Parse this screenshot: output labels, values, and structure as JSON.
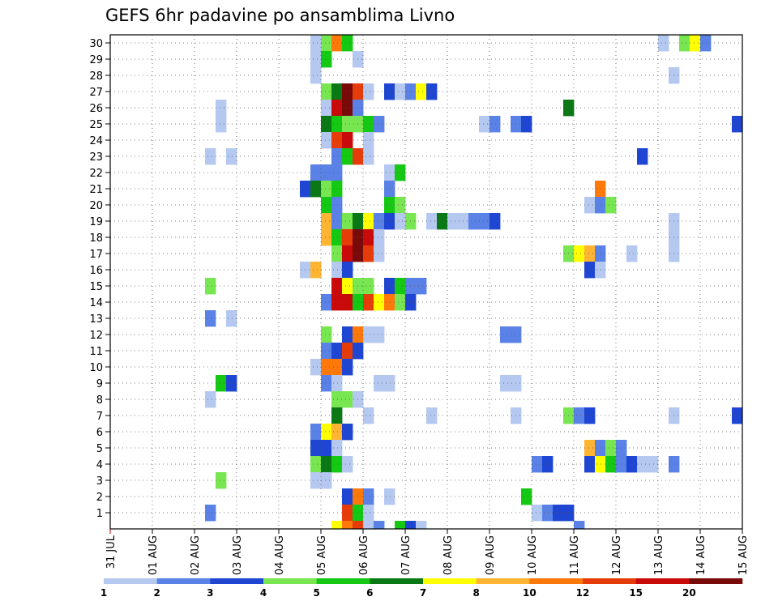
{
  "chart_data": {
    "type": "heatmap",
    "title": "GEFS 6hr padavine po ansamblima Livno",
    "y_ticks": [
      "30",
      "29",
      "28",
      "27",
      "26",
      "25",
      "24",
      "23",
      "22",
      "21",
      "20",
      "19",
      "18",
      "17",
      "16",
      "15",
      "14",
      "13",
      "12",
      "11",
      "10",
      "9",
      "8",
      "7",
      "6",
      "5",
      "4",
      "3",
      "2",
      "1"
    ],
    "x_ticks": [
      "31 JUL",
      "01 AUG",
      "02 AUG",
      "03 AUG",
      "04 AUG",
      "05 AUG",
      "06 AUG",
      "07 AUG",
      "08 AUG",
      "09 AUG",
      "10 AUG",
      "11 AUG",
      "12 AUG",
      "13 AUG",
      "14 AUG",
      "15 AUG"
    ],
    "color_scale": [
      {
        "label": "1",
        "color": "#b4c8f0"
      },
      {
        "label": "2",
        "color": "#5a82e6"
      },
      {
        "label": "3",
        "color": "#1e46d2"
      },
      {
        "label": "4",
        "color": "#78e650"
      },
      {
        "label": "5",
        "color": "#14c814"
      },
      {
        "label": "6",
        "color": "#0a7814"
      },
      {
        "label": "7",
        "color": "#ffff00"
      },
      {
        "label": "8",
        "color": "#ffb432"
      },
      {
        "label": "10",
        "color": "#ff780a"
      },
      {
        "label": "12",
        "color": "#e63c0a"
      },
      {
        "label": "15",
        "color": "#c80a0a"
      },
      {
        "label": "20",
        "color": "#780a0a"
      }
    ],
    "members": 30,
    "steps": 60,
    "cells": [
      [
        30,
        19,
        1
      ],
      [
        30,
        20,
        4
      ],
      [
        30,
        21,
        10
      ],
      [
        30,
        22,
        5
      ],
      [
        30,
        52,
        1
      ],
      [
        30,
        54,
        4
      ],
      [
        30,
        55,
        7
      ],
      [
        30,
        56,
        2
      ],
      [
        29,
        19,
        1
      ],
      [
        29,
        20,
        5
      ],
      [
        29,
        23,
        1
      ],
      [
        28,
        19,
        1
      ],
      [
        28,
        53,
        1
      ],
      [
        27,
        20,
        4
      ],
      [
        27,
        21,
        6
      ],
      [
        27,
        22,
        20
      ],
      [
        27,
        23,
        12
      ],
      [
        27,
        24,
        1
      ],
      [
        27,
        26,
        3
      ],
      [
        27,
        27,
        1
      ],
      [
        27,
        28,
        2
      ],
      [
        27,
        29,
        7
      ],
      [
        27,
        30,
        3
      ],
      [
        26,
        20,
        1
      ],
      [
        26,
        21,
        15
      ],
      [
        26,
        22,
        20
      ],
      [
        26,
        23,
        2
      ],
      [
        26,
        10,
        1
      ],
      [
        26,
        43,
        6
      ],
      [
        25,
        10,
        1
      ],
      [
        25,
        20,
        6
      ],
      [
        25,
        21,
        5
      ],
      [
        25,
        22,
        4
      ],
      [
        25,
        23,
        4
      ],
      [
        25,
        24,
        5
      ],
      [
        25,
        25,
        2
      ],
      [
        25,
        35,
        1
      ],
      [
        25,
        36,
        2
      ],
      [
        25,
        38,
        2
      ],
      [
        25,
        39,
        3
      ],
      [
        25,
        59,
        3
      ],
      [
        24,
        20,
        1
      ],
      [
        24,
        21,
        12
      ],
      [
        24,
        22,
        15
      ],
      [
        24,
        24,
        1
      ],
      [
        23,
        9,
        1
      ],
      [
        23,
        11,
        1
      ],
      [
        23,
        21,
        2
      ],
      [
        23,
        22,
        5
      ],
      [
        23,
        23,
        12
      ],
      [
        23,
        24,
        1
      ],
      [
        23,
        50,
        3
      ],
      [
        22,
        19,
        2
      ],
      [
        22,
        20,
        2
      ],
      [
        22,
        21,
        2
      ],
      [
        22,
        26,
        1
      ],
      [
        22,
        27,
        5
      ],
      [
        21,
        18,
        3
      ],
      [
        21,
        19,
        6
      ],
      [
        21,
        20,
        4
      ],
      [
        21,
        21,
        5
      ],
      [
        21,
        26,
        2
      ],
      [
        21,
        46,
        10
      ],
      [
        20,
        20,
        5
      ],
      [
        20,
        21,
        2
      ],
      [
        20,
        26,
        5
      ],
      [
        20,
        27,
        4
      ],
      [
        20,
        45,
        1
      ],
      [
        20,
        46,
        2
      ],
      [
        20,
        47,
        4
      ],
      [
        19,
        20,
        8
      ],
      [
        19,
        21,
        2
      ],
      [
        19,
        22,
        4
      ],
      [
        19,
        23,
        6
      ],
      [
        19,
        24,
        7
      ],
      [
        19,
        25,
        2
      ],
      [
        19,
        26,
        3
      ],
      [
        19,
        27,
        1
      ],
      [
        19,
        28,
        4
      ],
      [
        19,
        30,
        1
      ],
      [
        19,
        31,
        6
      ],
      [
        19,
        32,
        1
      ],
      [
        19,
        33,
        1
      ],
      [
        19,
        34,
        2
      ],
      [
        19,
        35,
        2
      ],
      [
        19,
        36,
        3
      ],
      [
        19,
        53,
        1
      ],
      [
        18,
        20,
        8
      ],
      [
        18,
        21,
        5
      ],
      [
        18,
        22,
        12
      ],
      [
        18,
        23,
        20
      ],
      [
        18,
        24,
        15
      ],
      [
        18,
        25,
        1
      ],
      [
        18,
        53,
        1
      ],
      [
        17,
        21,
        4
      ],
      [
        17,
        22,
        15
      ],
      [
        17,
        23,
        20
      ],
      [
        17,
        24,
        12
      ],
      [
        17,
        25,
        1
      ],
      [
        17,
        43,
        4
      ],
      [
        17,
        44,
        7
      ],
      [
        17,
        45,
        8
      ],
      [
        17,
        46,
        2
      ],
      [
        17,
        49,
        1
      ],
      [
        17,
        53,
        1
      ],
      [
        16,
        18,
        1
      ],
      [
        16,
        19,
        8
      ],
      [
        16,
        21,
        1
      ],
      [
        16,
        22,
        3
      ],
      [
        16,
        45,
        3
      ],
      [
        16,
        46,
        1
      ],
      [
        15,
        9,
        4
      ],
      [
        15,
        21,
        15
      ],
      [
        15,
        22,
        7
      ],
      [
        15,
        23,
        4
      ],
      [
        15,
        24,
        4
      ],
      [
        15,
        26,
        3
      ],
      [
        15,
        27,
        5
      ],
      [
        15,
        28,
        2
      ],
      [
        15,
        29,
        2
      ],
      [
        14,
        20,
        2
      ],
      [
        14,
        21,
        15
      ],
      [
        14,
        22,
        15
      ],
      [
        14,
        23,
        5
      ],
      [
        14,
        24,
        12
      ],
      [
        14,
        25,
        7
      ],
      [
        14,
        26,
        10
      ],
      [
        14,
        27,
        4
      ],
      [
        14,
        28,
        3
      ],
      [
        13,
        9,
        2
      ],
      [
        13,
        11,
        1
      ],
      [
        12,
        20,
        4
      ],
      [
        12,
        22,
        3
      ],
      [
        12,
        23,
        10
      ],
      [
        12,
        24,
        1
      ],
      [
        12,
        25,
        1
      ],
      [
        12,
        37,
        2
      ],
      [
        12,
        38,
        2
      ],
      [
        11,
        20,
        2
      ],
      [
        11,
        21,
        3
      ],
      [
        11,
        22,
        12
      ],
      [
        11,
        23,
        3
      ],
      [
        10,
        19,
        1
      ],
      [
        10,
        20,
        10
      ],
      [
        10,
        21,
        10
      ],
      [
        10,
        22,
        3
      ],
      [
        9,
        10,
        5
      ],
      [
        9,
        11,
        3
      ],
      [
        9,
        20,
        2
      ],
      [
        9,
        21,
        1
      ],
      [
        9,
        25,
        1
      ],
      [
        9,
        26,
        1
      ],
      [
        9,
        37,
        1
      ],
      [
        9,
        38,
        1
      ],
      [
        8,
        9,
        1
      ],
      [
        8,
        21,
        4
      ],
      [
        8,
        22,
        4
      ],
      [
        8,
        23,
        1
      ],
      [
        7,
        21,
        6
      ],
      [
        7,
        24,
        1
      ],
      [
        7,
        30,
        1
      ],
      [
        7,
        38,
        1
      ],
      [
        7,
        43,
        4
      ],
      [
        7,
        44,
        2
      ],
      [
        7,
        45,
        3
      ],
      [
        7,
        53,
        1
      ],
      [
        7,
        59,
        3
      ],
      [
        6,
        19,
        2
      ],
      [
        6,
        20,
        7
      ],
      [
        6,
        21,
        8
      ],
      [
        6,
        22,
        3
      ],
      [
        5,
        19,
        3
      ],
      [
        5,
        20,
        3
      ],
      [
        5,
        21,
        1
      ],
      [
        5,
        45,
        8
      ],
      [
        5,
        46,
        2
      ],
      [
        5,
        47,
        4
      ],
      [
        5,
        48,
        2
      ],
      [
        4,
        19,
        4
      ],
      [
        4,
        20,
        6
      ],
      [
        4,
        21,
        5
      ],
      [
        4,
        22,
        1
      ],
      [
        4,
        40,
        2
      ],
      [
        4,
        41,
        3
      ],
      [
        4,
        45,
        3
      ],
      [
        4,
        46,
        7
      ],
      [
        4,
        47,
        5
      ],
      [
        4,
        48,
        2
      ],
      [
        4,
        49,
        3
      ],
      [
        4,
        50,
        1
      ],
      [
        4,
        51,
        1
      ],
      [
        4,
        53,
        2
      ],
      [
        3,
        10,
        4
      ],
      [
        3,
        19,
        1
      ],
      [
        3,
        20,
        1
      ],
      [
        2,
        22,
        3
      ],
      [
        2,
        23,
        10
      ],
      [
        2,
        24,
        2
      ],
      [
        2,
        26,
        1
      ],
      [
        2,
        39,
        5
      ],
      [
        1,
        9,
        2
      ],
      [
        1,
        22,
        12
      ],
      [
        1,
        23,
        5
      ],
      [
        1,
        24,
        1
      ],
      [
        1,
        40,
        1
      ],
      [
        1,
        41,
        2
      ],
      [
        1,
        42,
        3
      ],
      [
        1,
        43,
        3
      ],
      [
        0,
        21,
        7
      ],
      [
        0,
        22,
        10
      ],
      [
        0,
        23,
        12
      ],
      [
        0,
        24,
        1
      ],
      [
        0,
        25,
        2
      ],
      [
        0,
        27,
        5
      ],
      [
        0,
        28,
        3
      ],
      [
        0,
        29,
        1
      ],
      [
        0,
        44,
        2
      ]
    ]
  }
}
